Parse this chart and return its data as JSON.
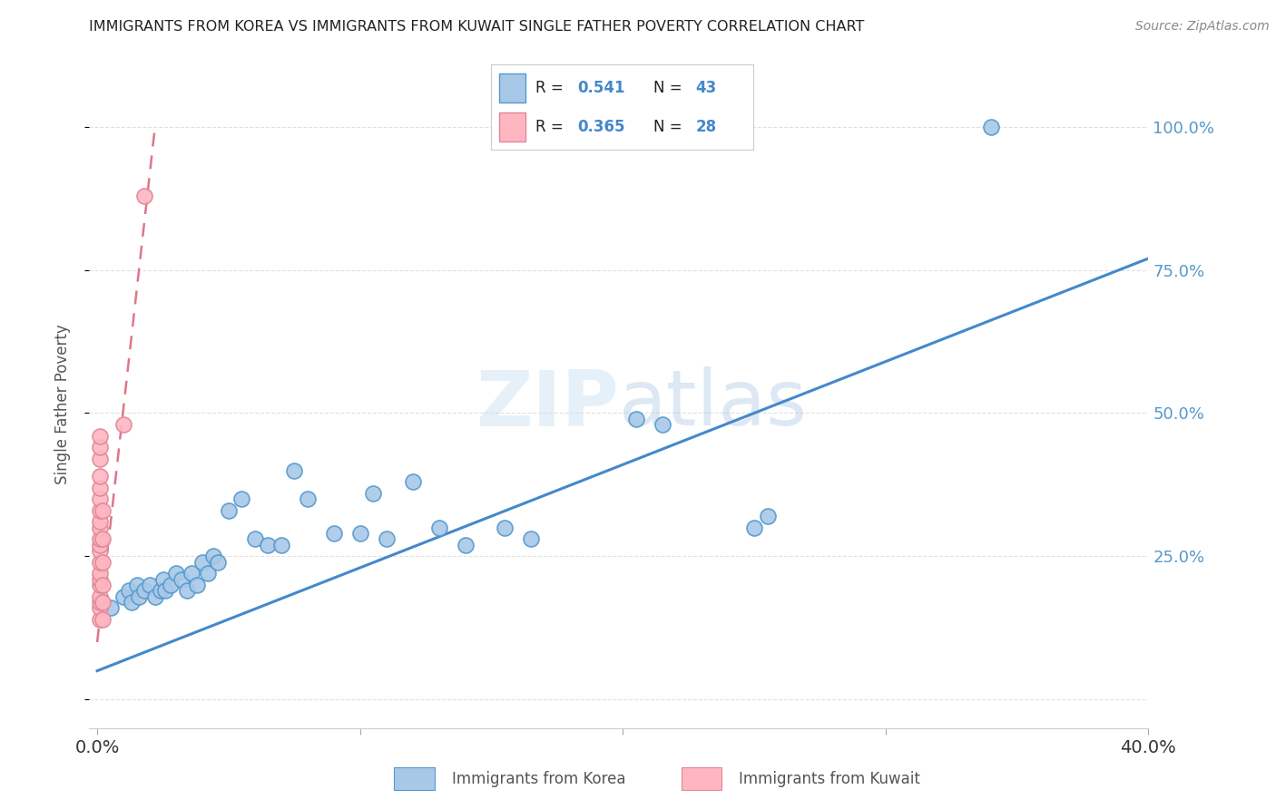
{
  "title": "IMMIGRANTS FROM KOREA VS IMMIGRANTS FROM KUWAIT SINGLE FATHER POVERTY CORRELATION CHART",
  "source": "Source: ZipAtlas.com",
  "ylabel": "Single Father Poverty",
  "xlim": [
    -0.003,
    0.4
  ],
  "ylim": [
    -0.05,
    1.08
  ],
  "watermark": "ZIPatlas",
  "legend_korea_r": "0.541",
  "legend_korea_n": "43",
  "legend_kuwait_r": "0.365",
  "legend_kuwait_n": "28",
  "korea_color": "#a8c8e8",
  "kuwait_color": "#ffb6c1",
  "korea_edge_color": "#5599cc",
  "kuwait_edge_color": "#dd8899",
  "korea_line_color": "#4488cc",
  "kuwait_line_color": "#dd7788",
  "right_label_color": "#5599cc",
  "korea_scatter_x": [
    0.005,
    0.01,
    0.012,
    0.013,
    0.015,
    0.016,
    0.018,
    0.02,
    0.022,
    0.024,
    0.025,
    0.026,
    0.028,
    0.03,
    0.032,
    0.034,
    0.036,
    0.038,
    0.04,
    0.042,
    0.044,
    0.046,
    0.05,
    0.055,
    0.06,
    0.065,
    0.07,
    0.075,
    0.08,
    0.09,
    0.1,
    0.105,
    0.11,
    0.12,
    0.13,
    0.14,
    0.155,
    0.165,
    0.205,
    0.215,
    0.25,
    0.255,
    0.34
  ],
  "korea_scatter_y": [
    0.16,
    0.18,
    0.19,
    0.17,
    0.2,
    0.18,
    0.19,
    0.2,
    0.18,
    0.19,
    0.21,
    0.19,
    0.2,
    0.22,
    0.21,
    0.19,
    0.22,
    0.2,
    0.24,
    0.22,
    0.25,
    0.24,
    0.33,
    0.35,
    0.28,
    0.27,
    0.27,
    0.4,
    0.35,
    0.29,
    0.29,
    0.36,
    0.28,
    0.38,
    0.3,
    0.27,
    0.3,
    0.28,
    0.49,
    0.48,
    0.3,
    0.32,
    1.0
  ],
  "kuwait_scatter_x": [
    0.001,
    0.001,
    0.001,
    0.001,
    0.001,
    0.001,
    0.001,
    0.001,
    0.001,
    0.001,
    0.001,
    0.001,
    0.001,
    0.001,
    0.001,
    0.001,
    0.001,
    0.001,
    0.001,
    0.001,
    0.002,
    0.002,
    0.002,
    0.002,
    0.002,
    0.002,
    0.01,
    0.018
  ],
  "kuwait_scatter_y": [
    0.14,
    0.16,
    0.17,
    0.18,
    0.2,
    0.21,
    0.22,
    0.24,
    0.26,
    0.27,
    0.28,
    0.3,
    0.31,
    0.33,
    0.35,
    0.37,
    0.39,
    0.42,
    0.44,
    0.46,
    0.14,
    0.17,
    0.2,
    0.24,
    0.28,
    0.33,
    0.48,
    0.88
  ],
  "korea_trendline_x": [
    0.0,
    0.4
  ],
  "korea_trendline_y": [
    0.05,
    0.77
  ],
  "kuwait_trendline_x": [
    0.0,
    0.022
  ],
  "kuwait_trendline_y": [
    0.1,
    1.0
  ],
  "xtick_positions": [
    0.0,
    0.1,
    0.2,
    0.3,
    0.4
  ],
  "ytick_positions": [
    0.0,
    0.25,
    0.5,
    0.75,
    1.0
  ],
  "background_color": "#ffffff",
  "grid_color": "#dddddd"
}
